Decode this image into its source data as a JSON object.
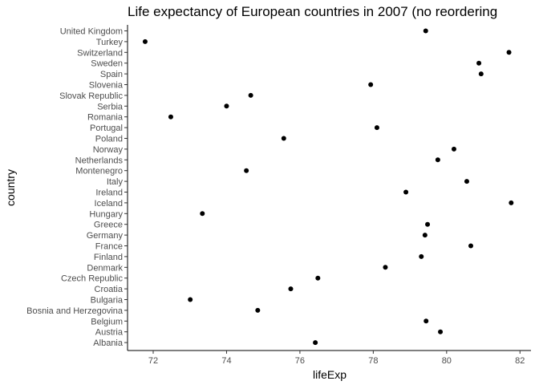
{
  "chart_data": {
    "type": "scatter",
    "title": "Life expectancy of European countries in 2007 (no reordering",
    "xlabel": "lifeExp",
    "ylabel": "country",
    "xlim": [
      71.3,
      82.3
    ],
    "xticks": [
      72,
      74,
      76,
      78,
      80,
      82
    ],
    "grid": false,
    "point_color": "#000000",
    "points": [
      {
        "country": "United Kingdom",
        "lifeExp": 79.43
      },
      {
        "country": "Turkey",
        "lifeExp": 71.78
      },
      {
        "country": "Switzerland",
        "lifeExp": 81.7
      },
      {
        "country": "Sweden",
        "lifeExp": 80.88
      },
      {
        "country": "Spain",
        "lifeExp": 80.94
      },
      {
        "country": "Slovenia",
        "lifeExp": 77.93
      },
      {
        "country": "Slovak Republic",
        "lifeExp": 74.66
      },
      {
        "country": "Serbia",
        "lifeExp": 74.0
      },
      {
        "country": "Romania",
        "lifeExp": 72.48
      },
      {
        "country": "Portugal",
        "lifeExp": 78.1
      },
      {
        "country": "Poland",
        "lifeExp": 75.56
      },
      {
        "country": "Norway",
        "lifeExp": 80.2
      },
      {
        "country": "Netherlands",
        "lifeExp": 79.76
      },
      {
        "country": "Montenegro",
        "lifeExp": 74.54
      },
      {
        "country": "Italy",
        "lifeExp": 80.55
      },
      {
        "country": "Ireland",
        "lifeExp": 78.89
      },
      {
        "country": "Iceland",
        "lifeExp": 81.76
      },
      {
        "country": "Hungary",
        "lifeExp": 73.34
      },
      {
        "country": "Greece",
        "lifeExp": 79.48
      },
      {
        "country": "Germany",
        "lifeExp": 79.41
      },
      {
        "country": "France",
        "lifeExp": 80.66
      },
      {
        "country": "Finland",
        "lifeExp": 79.31
      },
      {
        "country": "Denmark",
        "lifeExp": 78.33
      },
      {
        "country": "Czech Republic",
        "lifeExp": 76.49
      },
      {
        "country": "Croatia",
        "lifeExp": 75.75
      },
      {
        "country": "Bulgaria",
        "lifeExp": 73.01
      },
      {
        "country": "Bosnia and Herzegovina",
        "lifeExp": 74.85
      },
      {
        "country": "Belgium",
        "lifeExp": 79.44
      },
      {
        "country": "Austria",
        "lifeExp": 79.83
      },
      {
        "country": "Albania",
        "lifeExp": 76.42
      }
    ]
  }
}
